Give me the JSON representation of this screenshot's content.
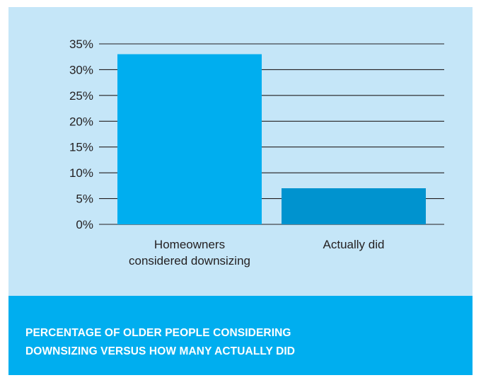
{
  "chart_data": {
    "type": "bar",
    "categories": [
      [
        "Homeowners",
        "considered downsizing"
      ],
      [
        "Actually did"
      ]
    ],
    "values": [
      33,
      7
    ],
    "ylim": [
      0,
      35
    ],
    "yticks": [
      0,
      5,
      10,
      15,
      20,
      25,
      30,
      35
    ],
    "ytick_labels": [
      "0%",
      "5%",
      "10%",
      "15%",
      "20%",
      "25%",
      "30%",
      "35%"
    ],
    "grid": true,
    "colors": [
      "#00aeef",
      "#0093cf"
    ],
    "title": "",
    "xlabel": "",
    "ylabel": ""
  },
  "caption": {
    "lines": [
      "PERCENTAGE OF OLDER PEOPLE CONSIDERING",
      "DOWNSIZING VERSUS HOW MANY ACTUALLY DID"
    ]
  },
  "colors": {
    "panel_background": "#c5e6f8",
    "banner_background": "#00aeef",
    "banner_text": "#ffffff",
    "gridline": "#231f20",
    "text": "#231f20"
  }
}
